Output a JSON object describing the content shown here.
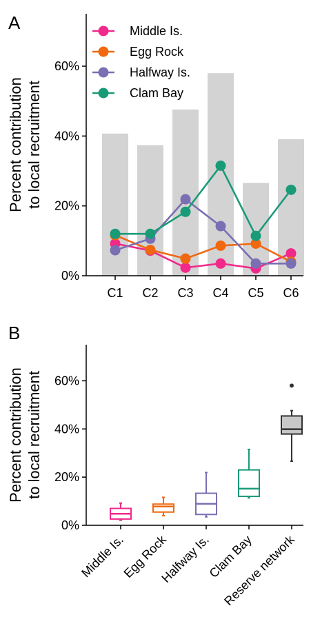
{
  "chart_data": [
    {
      "panel": "A",
      "type": "bar+line",
      "ylabel": [
        "Percent contribution",
        "to local recruitment"
      ],
      "ylim": [
        0,
        75
      ],
      "yticks": [
        0,
        20,
        40,
        60
      ],
      "ytick_labels": [
        "0%",
        "20%",
        "40%",
        "60%"
      ],
      "categories": [
        "C1",
        "C2",
        "C3",
        "C4",
        "C5",
        "C6"
      ],
      "bars": {
        "color": "#d3d3d3",
        "values": [
          40.7,
          37.4,
          47.6,
          58.0,
          26.6,
          39.1
        ]
      },
      "series": [
        {
          "name": "Middle Is.",
          "color": "#f0298a",
          "values": [
            9.2,
            7.2,
            2.3,
            3.5,
            2.1,
            6.4
          ]
        },
        {
          "name": "Egg Rock",
          "color": "#f0680f",
          "values": [
            11.6,
            7.4,
            4.9,
            8.6,
            9.2,
            4.0
          ]
        },
        {
          "name": "Halfway Is.",
          "color": "#7a6fb3",
          "values": [
            7.3,
            10.6,
            21.9,
            14.2,
            3.5,
            3.5
          ]
        },
        {
          "name": "Clam Bay",
          "color": "#1a9b78",
          "values": [
            12.0,
            12.0,
            18.3,
            31.5,
            11.4,
            24.6
          ]
        }
      ],
      "legend_placement": "top-left",
      "grid": false
    },
    {
      "panel": "B",
      "type": "box",
      "ylabel": [
        "Percent contribution",
        "to local recruitment"
      ],
      "ylim": [
        0,
        75
      ],
      "yticks": [
        0,
        20,
        40,
        60
      ],
      "ytick_labels": [
        "0%",
        "20%",
        "40%",
        "60%"
      ],
      "categories": [
        "Middle Is.",
        "Egg Rock",
        "Halfway Is.",
        "Clam Bay",
        "Reserve network"
      ],
      "boxes": [
        {
          "name": "Middle Is.",
          "color": "#f0298a",
          "fill": "none",
          "whislo": 2.1,
          "q1": 2.6,
          "median": 4.8,
          "q3": 7.0,
          "whishi": 9.2,
          "fliers": []
        },
        {
          "name": "Egg Rock",
          "color": "#f0680f",
          "fill": "none",
          "whislo": 4.0,
          "q1": 5.5,
          "median": 7.8,
          "q3": 8.8,
          "whishi": 11.6,
          "fliers": []
        },
        {
          "name": "Halfway Is.",
          "color": "#7a6fb3",
          "fill": "none",
          "whislo": 3.5,
          "q1": 4.5,
          "median": 8.9,
          "q3": 13.3,
          "whishi": 21.9,
          "fliers": []
        },
        {
          "name": "Clam Bay",
          "color": "#1a9b78",
          "fill": "none",
          "whislo": 11.4,
          "q1": 12.0,
          "median": 15.2,
          "q3": 23.0,
          "whishi": 31.5,
          "fliers": []
        },
        {
          "name": "Reserve network",
          "color": "#333333",
          "fill": "#c8c8c8",
          "whislo": 26.6,
          "q1": 37.9,
          "median": 39.9,
          "q3": 45.4,
          "whishi": 47.6,
          "fliers": [
            58.0
          ]
        }
      ],
      "grid": false
    }
  ]
}
